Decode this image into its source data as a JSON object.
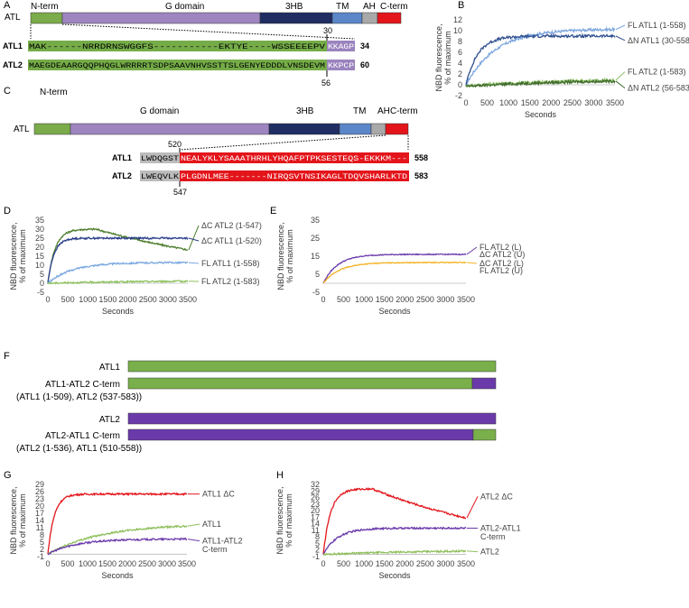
{
  "panels": {
    "A": "A",
    "B": "B",
    "C": "C",
    "D": "D",
    "E": "E",
    "F": "F",
    "G": "G",
    "H": "H"
  },
  "colors": {
    "nterm": "#7bab4b",
    "gdomain": "#9e85c0",
    "hb": "#1f2d63",
    "tm": "#5b86c9",
    "ah": "#a9a9a9",
    "cterm": "#e3151b",
    "atl2": "#6a3aab",
    "atl1": "#7ab04b",
    "seqgreen": "#75ac48",
    "seqpurple": "#9b83be"
  },
  "panelA": {
    "label": "ATL",
    "domains": [
      "N-term",
      "G domain",
      "3HB",
      "TM",
      "AH",
      "C-term"
    ],
    "mark": "30",
    "rows": [
      {
        "name": "ATL1",
        "seq": "MAK------NRRDRNSWGGFS-----------EKTYE----WSSEEEEPV",
        "tail": "KKAGP",
        "num": "34"
      },
      {
        "name": "ATL2",
        "seq": "MAEGDEAARGQQPHQGLWRRRRTSDPSAAVNHVSSTTSLGENYEDDDLVNSDEVM",
        "tail": "KKPCP",
        "num": "60"
      }
    ],
    "mark2": "56"
  },
  "panelC": {
    "label": "ATL",
    "domains": [
      "N-term",
      "G domain",
      "3HB",
      "TM",
      "AH",
      "C-term"
    ],
    "mark": "520",
    "rows": [
      {
        "name": "ATL1",
        "grey": "LWDQGST",
        "seq": "NEALYKLYSAAATHRHLYHQAFPTPKSESTEQS-EKKKM---",
        "num": "558"
      },
      {
        "name": "ATL2",
        "grey": "LWEQVLK",
        "seq": "PLGDNLMEE-------NIRQSVTNSIKAGLTDQVSHARLKTD",
        "num": "583"
      }
    ],
    "mark2": "547"
  },
  "panelF": {
    "rows": [
      {
        "label": "ATL1",
        "sub": ""
      },
      {
        "label": "ATL1-ATL2 C-term",
        "sub": "(ATL1 (1-509), ATL2 (537-583))"
      },
      {
        "label": "ATL2",
        "sub": ""
      },
      {
        "label": "ATL2-ATL1 C-term",
        "sub": "(ATL2 (1-536), ATL1 (510-558))"
      }
    ]
  },
  "chart_data": [
    {
      "panel": "B",
      "type": "line",
      "xlabel": "Seconds",
      "ylabel": "NBD fluorescence, % of maximum",
      "xticks": [
        "0",
        "500",
        "1000",
        "1500",
        "2000",
        "2500",
        "3000",
        "3500"
      ],
      "yticks": [
        "-2",
        "0",
        "2",
        "4",
        "6",
        "8",
        "10",
        "12"
      ],
      "ylim": [
        -2,
        12
      ],
      "xlim": [
        0,
        3500
      ],
      "series": [
        {
          "name": "FL ATL1 (1-558)",
          "color": "#7da6de",
          "amp": 10.3,
          "tau": 700,
          "start": 0
        },
        {
          "name": "ΔN ATL1 (30-558)",
          "color": "#2f4f8f",
          "amp": 9.0,
          "tau": 280,
          "start": 0
        },
        {
          "name": "FL ATL2 (1-583)",
          "color": "#8cc066",
          "amp": 1.2,
          "tau": 2500,
          "start": -0.2
        },
        {
          "name": "ΔN ATL2 (56-583)",
          "color": "#3f6b2a",
          "amp": 1.0,
          "tau": 2500,
          "start": -0.3
        }
      ]
    },
    {
      "panel": "D",
      "type": "line",
      "xlabel": "Seconds",
      "ylabel": "NBD fluorescence, % of maximum",
      "xticks": [
        "0",
        "500",
        "1000",
        "1500",
        "2000",
        "2500",
        "3000",
        "3500"
      ],
      "yticks": [
        "-5",
        "0",
        "5",
        "10",
        "15",
        "20",
        "25",
        "30",
        "35"
      ],
      "ylim": [
        -5,
        35
      ],
      "xlim": [
        0,
        3500
      ],
      "series": [
        {
          "name": "ΔC ATL2 (1-547)",
          "color": "#4d7e2c",
          "amp": 30,
          "tau": 180,
          "start": 0,
          "decay": 0.0014
        },
        {
          "name": "ΔC ATL1 (1-520)",
          "color": "#2b3f8a",
          "amp": 25,
          "tau": 150,
          "start": 0
        },
        {
          "name": "FL ATL1 (1-558)",
          "color": "#7aa8e0",
          "amp": 11.5,
          "tau": 600,
          "start": 0
        },
        {
          "name": "FL ATL2 (1-583)",
          "color": "#8cc25c",
          "amp": 1.5,
          "tau": 2500,
          "start": 0
        }
      ]
    },
    {
      "panel": "E",
      "type": "line",
      "xlabel": "Seconds",
      "ylabel": "NBD fluorescence, % of maximum",
      "xticks": [
        "0",
        "500",
        "1000",
        "1500",
        "2000",
        "2500",
        "3000",
        "3500"
      ],
      "yticks": [
        "-5",
        "5",
        "15",
        "25",
        "35"
      ],
      "ylim": [
        -5,
        35
      ],
      "xlim": [
        0,
        3500
      ],
      "series": [
        {
          "name": "FL ATL2 (L)",
          "name2": "ΔC ATL2 (U)",
          "color": "#6a3aab",
          "amp": 16,
          "tau": 350,
          "start": 0
        },
        {
          "name": "ΔC ATL2 (L)",
          "name2": "FL ATL2 (U)",
          "color": "#f2b325",
          "amp": 11.5,
          "tau": 400,
          "start": 0
        }
      ]
    },
    {
      "panel": "G",
      "type": "line",
      "xlabel": "Seconds",
      "ylabel": "NBD fluorescence, % of maximum",
      "xticks": [
        "0",
        "500",
        "1000",
        "1500",
        "2000",
        "2500",
        "3000",
        "3500"
      ],
      "yticks": [
        "-1",
        "2",
        "5",
        "8",
        "11",
        "14",
        "17",
        "20",
        "23",
        "26",
        "29"
      ],
      "ylim": [
        -1,
        29
      ],
      "xlim": [
        0,
        3500
      ],
      "series": [
        {
          "name": "ATL1 ΔC",
          "color": "#e3151b",
          "amp": 25,
          "tau": 160,
          "start": 0
        },
        {
          "name": "ATL1",
          "color": "#8fbf5c",
          "amp": 12.5,
          "tau": 1300,
          "start": 0
        },
        {
          "name": "ATL1-ATL2",
          "name2": "C-term",
          "color": "#6a3aab",
          "amp": 6.3,
          "tau": 700,
          "start": 0
        }
      ]
    },
    {
      "panel": "H",
      "type": "line",
      "xlabel": "Seconds",
      "ylabel": "NBD fluorescence, % of maximum",
      "xticks": [
        "0",
        "500",
        "1000",
        "1500",
        "2000",
        "2500",
        "3000",
        "3500"
      ],
      "yticks": [
        "-1",
        "2",
        "5",
        "8",
        "11",
        "14",
        "17",
        "20",
        "23",
        "26",
        "29",
        "32"
      ],
      "ylim": [
        -1,
        32
      ],
      "xlim": [
        0,
        3500
      ],
      "series": [
        {
          "name": "ATL2 ΔC",
          "color": "#e3151b",
          "amp": 30,
          "tau": 180,
          "start": 0,
          "decay": 0.0017
        },
        {
          "name": "ATL2-ATL1",
          "name2": "C-term",
          "color": "#6a3aab",
          "amp": 12,
          "tau": 350,
          "start": 0
        },
        {
          "name": "ATL2",
          "color": "#8fbf5c",
          "amp": 2.2,
          "tau": 3000,
          "start": 0
        }
      ]
    }
  ]
}
